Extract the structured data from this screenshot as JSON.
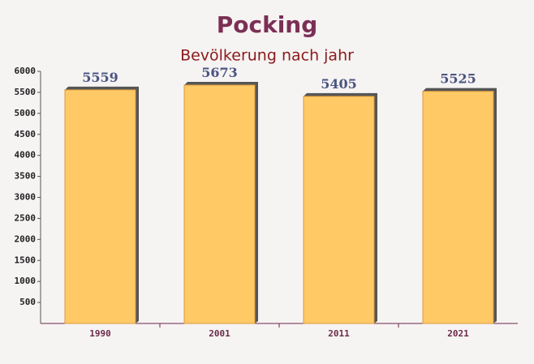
{
  "chart_data": {
    "type": "bar",
    "title": "Pocking",
    "subtitle": "Bevölkerung nach jahr",
    "categories": [
      "1990",
      "2001",
      "2011",
      "2021"
    ],
    "values": [
      5559,
      5673,
      5405,
      5525
    ],
    "color": "#ffc966",
    "ylim": [
      0,
      6000
    ],
    "yticks": [
      500,
      1000,
      1500,
      2000,
      2500,
      3000,
      3500,
      4000,
      4500,
      5000,
      5500,
      6000
    ]
  }
}
